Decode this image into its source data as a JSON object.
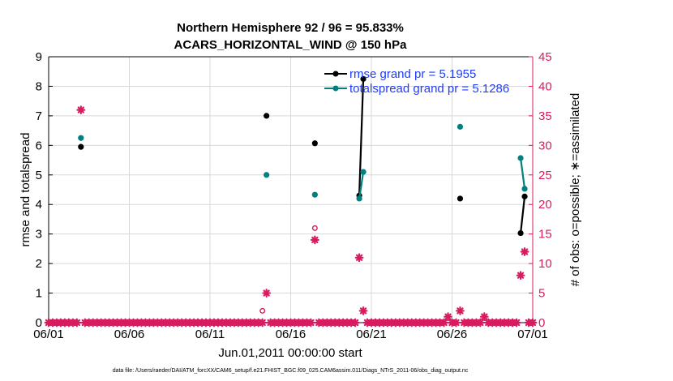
{
  "chart_data": {
    "type": "line",
    "title": [
      "Northern Hemisphere 92 / 96 = 95.833%",
      "ACARS_HORIZONTAL_WIND @ 150 hPa"
    ],
    "xlabel": "Jun.01,2011 00:00:00 start",
    "ylabel": "rmse and totalspread",
    "y2label": "# of obs: o=possible; ∗=assimilated",
    "xlim": [
      0,
      30
    ],
    "ylim": [
      0,
      9
    ],
    "y2lim": [
      0,
      45
    ],
    "x_ticks": [
      0,
      5,
      10,
      15,
      20,
      25,
      30
    ],
    "x_tick_labels": [
      "06/01",
      "06/06",
      "06/11",
      "06/16",
      "06/21",
      "06/26",
      "07/01"
    ],
    "y_ticks": [
      0,
      1,
      2,
      3,
      4,
      5,
      6,
      7,
      8,
      9
    ],
    "y2_ticks": [
      0,
      5,
      10,
      15,
      20,
      25,
      30,
      35,
      40,
      45
    ],
    "grid": true,
    "legend_position": "top-right",
    "series": [
      {
        "name": "rmse grand pr = 5.1955",
        "axis": "left",
        "color": "#000000",
        "points": [
          [
            2,
            5.95
          ],
          [
            13.5,
            7.0
          ],
          [
            16.5,
            6.07
          ],
          [
            19.25,
            4.3
          ],
          [
            19.5,
            8.25
          ],
          [
            25.5,
            4.2
          ],
          [
            29.25,
            3.03
          ],
          [
            29.5,
            4.27
          ]
        ],
        "segments": [
          [
            [
              19.25,
              4.3
            ],
            [
              19.5,
              8.25
            ]
          ],
          [
            [
              29.25,
              3.03
            ],
            [
              29.5,
              4.27
            ]
          ]
        ]
      },
      {
        "name": "totalspread grand pr = 5.1286",
        "axis": "left",
        "color": "#008080",
        "points": [
          [
            2,
            6.25
          ],
          [
            13.5,
            5.0
          ],
          [
            16.5,
            4.33
          ],
          [
            19.25,
            4.2
          ],
          [
            19.5,
            5.1
          ],
          [
            25.5,
            6.63
          ],
          [
            29.25,
            5.57
          ],
          [
            29.5,
            4.53
          ]
        ],
        "segments": [
          [
            [
              19.25,
              4.2
            ],
            [
              19.5,
              5.1
            ]
          ],
          [
            [
              29.25,
              5.57
            ],
            [
              29.5,
              4.53
            ]
          ]
        ]
      },
      {
        "name": "obs possible",
        "axis": "right",
        "color": "#d81b60",
        "marker": "o",
        "points": [
          [
            13.25,
            2
          ],
          [
            16.5,
            16
          ]
        ]
      },
      {
        "name": "obs assimilated",
        "axis": "right",
        "color": "#d81b60",
        "marker": "*",
        "nonzero_points": [
          [
            2,
            36
          ],
          [
            13.5,
            5
          ],
          [
            16.5,
            14
          ],
          [
            19.25,
            11
          ],
          [
            19.5,
            2
          ],
          [
            24.75,
            1
          ],
          [
            25.5,
            2
          ],
          [
            27,
            1
          ],
          [
            29.25,
            8
          ],
          [
            29.5,
            12
          ]
        ],
        "zero_step": 0.25
      }
    ],
    "footer": "data file: /Users/raeder/DAI/ATM_forcXX/CAM6_setup/f.e21.FHIST_BGC.f09_025.CAM6assim.011/Diags_NTrS_2011-06/obs_diag_output.nc"
  },
  "colors": {
    "rmse": "#000000",
    "spread": "#008080",
    "obs": "#d81b60",
    "legend_text": "#1f3cff",
    "grid": "#d9d9d9"
  }
}
